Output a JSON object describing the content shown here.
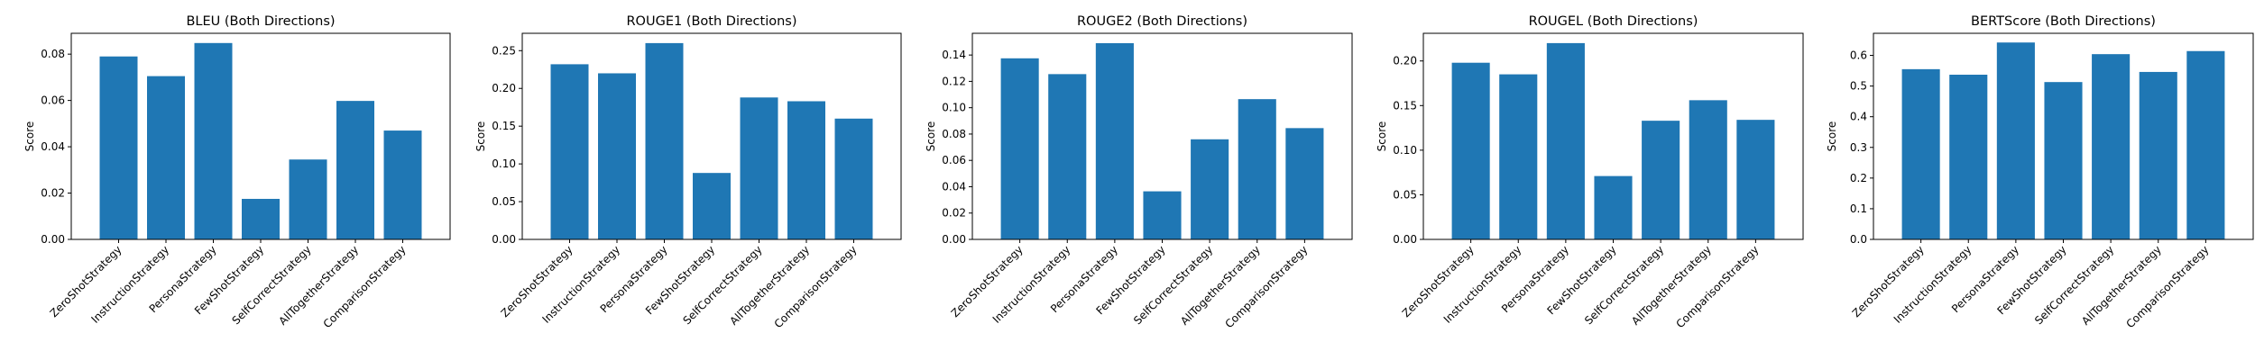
{
  "chart_data": [
    {
      "type": "bar",
      "title": "BLEU (Both Directions)",
      "xlabel": "",
      "ylabel": "Score",
      "categories": [
        "ZeroShotStrategy",
        "InstructionStrategy",
        "PersonaStrategy",
        "FewShotStrategy",
        "SelfCorrectStrategy",
        "AllTogetherStrategy",
        "ComparisonStrategy"
      ],
      "values": [
        0.079,
        0.0705,
        0.0848,
        0.0175,
        0.0345,
        0.0598,
        0.047
      ],
      "ylim": [
        0,
        0.089
      ],
      "yticks": [
        0.0,
        0.02,
        0.04,
        0.06,
        0.08
      ],
      "ytick_labels": [
        "0.00",
        "0.02",
        "0.04",
        "0.06",
        "0.08"
      ]
    },
    {
      "type": "bar",
      "title": "ROUGE1 (Both Directions)",
      "xlabel": "",
      "ylabel": "Score",
      "categories": [
        "ZeroShotStrategy",
        "InstructionStrategy",
        "PersonaStrategy",
        "FewShotStrategy",
        "SelfCorrectStrategy",
        "AllTogetherStrategy",
        "ComparisonStrategy"
      ],
      "values": [
        0.232,
        0.22,
        0.26,
        0.088,
        0.188,
        0.183,
        0.16
      ],
      "ylim": [
        0,
        0.273
      ],
      "yticks": [
        0.0,
        0.05,
        0.1,
        0.15,
        0.2,
        0.25
      ],
      "ytick_labels": [
        "0.00",
        "0.05",
        "0.10",
        "0.15",
        "0.20",
        "0.25"
      ]
    },
    {
      "type": "bar",
      "title": "ROUGE2 (Both Directions)",
      "xlabel": "",
      "ylabel": "Score",
      "categories": [
        "ZeroShotStrategy",
        "InstructionStrategy",
        "PersonaStrategy",
        "FewShotStrategy",
        "SelfCorrectStrategy",
        "AllTogetherStrategy",
        "ComparisonStrategy"
      ],
      "values": [
        0.1375,
        0.1255,
        0.149,
        0.0365,
        0.076,
        0.1065,
        0.0845
      ],
      "ylim": [
        0,
        0.1565
      ],
      "yticks": [
        0.0,
        0.02,
        0.04,
        0.06,
        0.08,
        0.1,
        0.12,
        0.14
      ],
      "ytick_labels": [
        "0.00",
        "0.02",
        "0.04",
        "0.06",
        "0.08",
        "0.10",
        "0.12",
        "0.14"
      ]
    },
    {
      "type": "bar",
      "title": "ROUGEL (Both Directions)",
      "xlabel": "",
      "ylabel": "Score",
      "categories": [
        "ZeroShotStrategy",
        "InstructionStrategy",
        "PersonaStrategy",
        "FewShotStrategy",
        "SelfCorrectStrategy",
        "AllTogetherStrategy",
        "ComparisonStrategy"
      ],
      "values": [
        0.198,
        0.185,
        0.22,
        0.071,
        0.133,
        0.156,
        0.134
      ],
      "ylim": [
        0,
        0.231
      ],
      "yticks": [
        0.0,
        0.05,
        0.1,
        0.15,
        0.2
      ],
      "ytick_labels": [
        "0.00",
        "0.05",
        "0.10",
        "0.15",
        "0.20"
      ]
    },
    {
      "type": "bar",
      "title": "BERTScore (Both Directions)",
      "xlabel": "",
      "ylabel": "Score",
      "categories": [
        "ZeroShotStrategy",
        "InstructionStrategy",
        "PersonaStrategy",
        "FewShotStrategy",
        "SelfCorrectStrategy",
        "AllTogetherStrategy",
        "ComparisonStrategy"
      ],
      "values": [
        0.555,
        0.537,
        0.642,
        0.513,
        0.604,
        0.546,
        0.614
      ],
      "ylim": [
        0,
        0.672
      ],
      "yticks": [
        0.0,
        0.1,
        0.2,
        0.3,
        0.4,
        0.5,
        0.6
      ],
      "ytick_labels": [
        "0.0",
        "0.1",
        "0.2",
        "0.3",
        "0.4",
        "0.5",
        "0.6"
      ]
    }
  ],
  "colors": {
    "bar": "#1f77b4",
    "axis": "#000000",
    "background": "#ffffff"
  },
  "legend": "none",
  "grid": false
}
